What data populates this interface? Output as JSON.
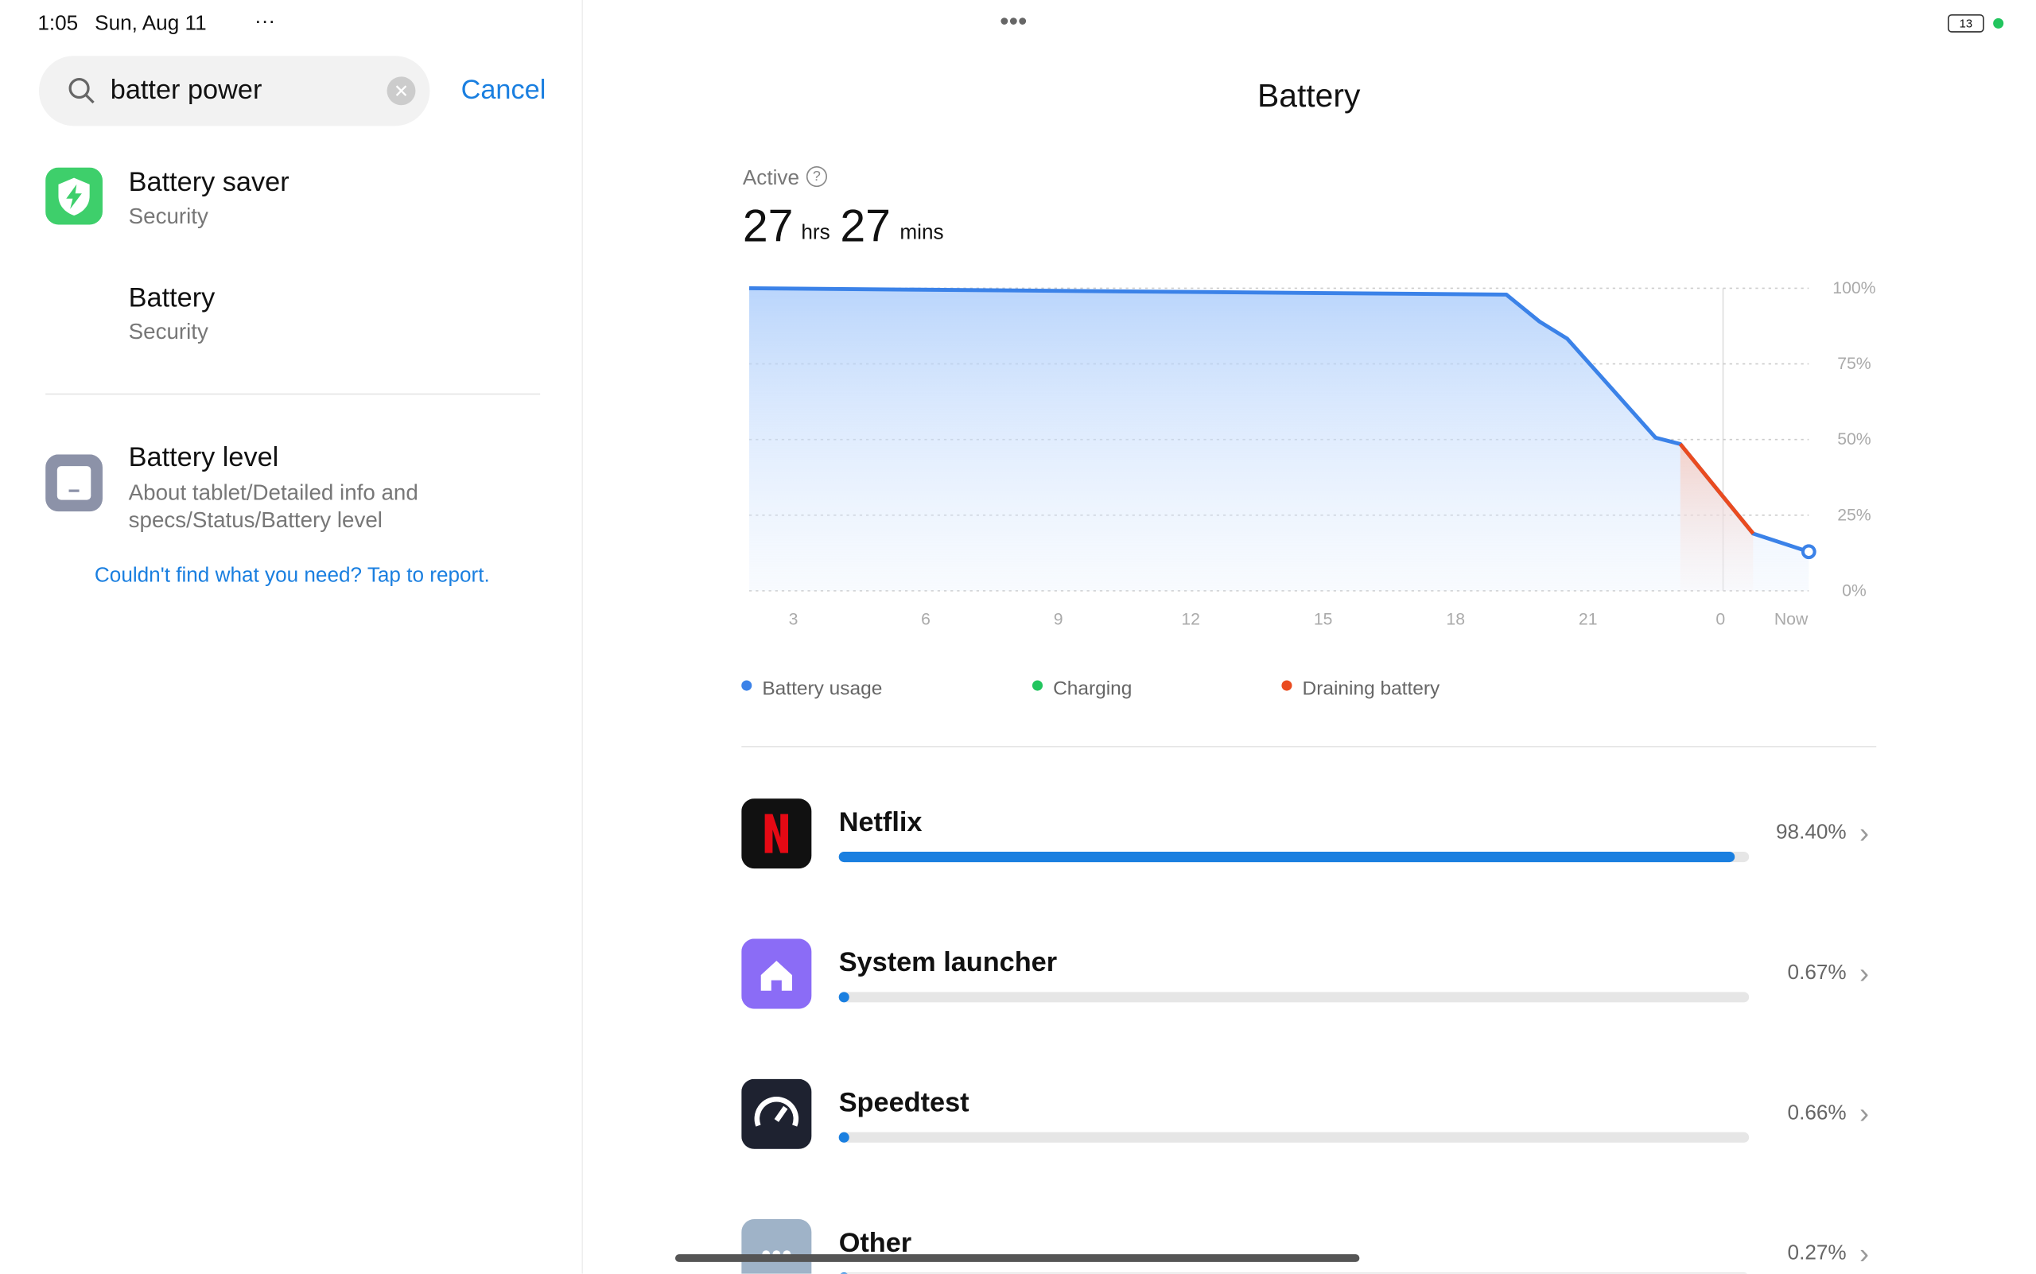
{
  "status_bar": {
    "time": "1:05",
    "date": "Sun, Aug 11",
    "battery": "13"
  },
  "search": {
    "query": "batter power",
    "cancel": "Cancel"
  },
  "results": [
    {
      "title": "Battery saver",
      "subtitle": "Security"
    },
    {
      "title": "Battery",
      "subtitle": "Security"
    },
    {
      "title": "Battery level",
      "subtitle": "About tablet/Detailed info and specs/Status/Battery level"
    }
  ],
  "report_link": "Couldn't find what you need? Tap to report.",
  "battery": {
    "title": "Battery",
    "active_label": "Active",
    "hours": "27",
    "hours_unit": "hrs",
    "minutes": "27",
    "minutes_unit": "mins",
    "chart": {
      "type": "line",
      "x": [
        2,
        19.15,
        19.9,
        20.53,
        22.53,
        23.09,
        24.74,
        26
      ],
      "series": [
        {
          "name": "Battery usage",
          "color": "#3b82e8",
          "values": [
            100,
            97.9,
            89,
            83.3,
            50.6,
            48.5,
            18.9,
            12.9
          ]
        },
        {
          "name": "Charging",
          "color": "#22c55e",
          "values": [
            null,
            null,
            null,
            null,
            null,
            null,
            null,
            null
          ]
        },
        {
          "name": "Draining battery",
          "color": "#ea4b1f",
          "values": [
            null,
            null,
            null,
            null,
            null,
            48.5,
            18.9,
            null
          ]
        }
      ],
      "xlim": [
        2,
        26
      ],
      "xticks": [
        3,
        6,
        9,
        12,
        15,
        18,
        21,
        {
          "value": 24,
          "label": "0"
        },
        {
          "value": 25.6,
          "label": "Now"
        }
      ],
      "ylim": [
        0,
        100
      ],
      "yticks": [
        {
          "value": 100,
          "label": "100%"
        },
        {
          "value": 75,
          "label": "75%"
        },
        {
          "value": 50,
          "label": "50%"
        },
        {
          "value": 25,
          "label": "25%"
        },
        {
          "value": 0,
          "label": "0%"
        }
      ],
      "grid": true
    },
    "apps": [
      {
        "name": "Netflix",
        "value": 98.4,
        "value_label": "98.40%"
      },
      {
        "name": "System launcher",
        "value": 0.67,
        "value_label": "0.67%"
      },
      {
        "name": "Speedtest",
        "value": 0.66,
        "value_label": "0.66%"
      },
      {
        "name": "Other",
        "value": 0.27,
        "value_label": "0.27%"
      }
    ]
  }
}
